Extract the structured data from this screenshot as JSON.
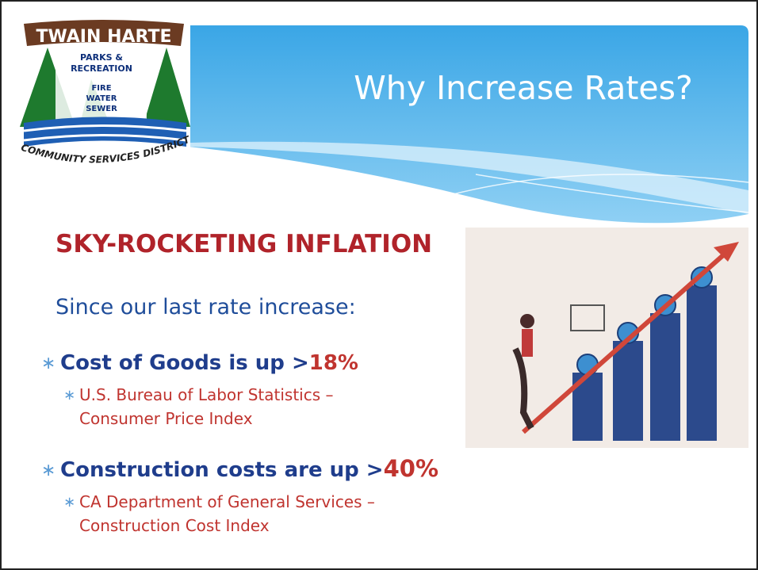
{
  "logo": {
    "name": "TWAIN HARTE",
    "lines": [
      "PARKS &",
      "RECREATION",
      "FIRE",
      "WATER",
      "SEWER"
    ],
    "district": "COMMUNITY SERVICES DISTRICT"
  },
  "title": "Why Increase Rates?",
  "heading": "SKY-ROCKETING INFLATION",
  "intro": "Since our last rate increase:",
  "bullets": [
    {
      "text": "Cost of Goods is up >",
      "highlight": "18%",
      "sub": [
        "U.S. Bureau of Labor Statistics –",
        "Consumer Price Index"
      ]
    },
    {
      "text": "Construction costs are up >",
      "highlight": "40%",
      "sub": [
        "CA Department of General Services –",
        "Construction Cost Index"
      ]
    }
  ]
}
